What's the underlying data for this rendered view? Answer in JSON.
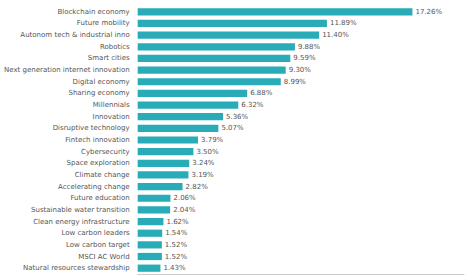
{
  "chart_data": {
    "type": "bar",
    "orientation": "horizontal",
    "categories": [
      "Blockchain economy",
      "Future mobility",
      "Autonom tech & industrial inno",
      "Robotics",
      "Smart cities",
      "Next generation internet innovation",
      "Digital economy",
      "Sharing economy",
      "Millennials",
      "Innovation",
      "Disruptive technology",
      "Fintech innovation",
      "Cybersecurity",
      "Space exploration",
      "Climate change",
      "Accelerating change",
      "Future education",
      "Sustainable water transition",
      "Clean energy infrastructure",
      "Low carbon leaders",
      "Low carbon target",
      "MSCI AC World",
      "Natural resources stewardship"
    ],
    "values": [
      17.26,
      11.89,
      11.4,
      9.88,
      9.59,
      9.3,
      8.99,
      6.88,
      6.32,
      5.36,
      5.07,
      3.79,
      3.5,
      3.24,
      3.19,
      2.82,
      2.06,
      2.04,
      1.62,
      1.54,
      1.52,
      1.52,
      1.43
    ],
    "value_labels": [
      "17.26%",
      "11.89%",
      "11.40%",
      "9.88%",
      "9.59%",
      "9.30%",
      "8.99%",
      "6.88%",
      "6.32%",
      "5.36%",
      "5.07%",
      "3.79%",
      "3.50%",
      "3.24%",
      "3.19%",
      "2.82%",
      "2.06%",
      "2.04%",
      "1.62%",
      "1.54%",
      "1.52%",
      "1.52%",
      "1.43%"
    ],
    "color": "#2aacb8",
    "xlim": [
      0,
      20.5
    ],
    "data_labels": true,
    "tick_labels": "y",
    "grid": false
  }
}
